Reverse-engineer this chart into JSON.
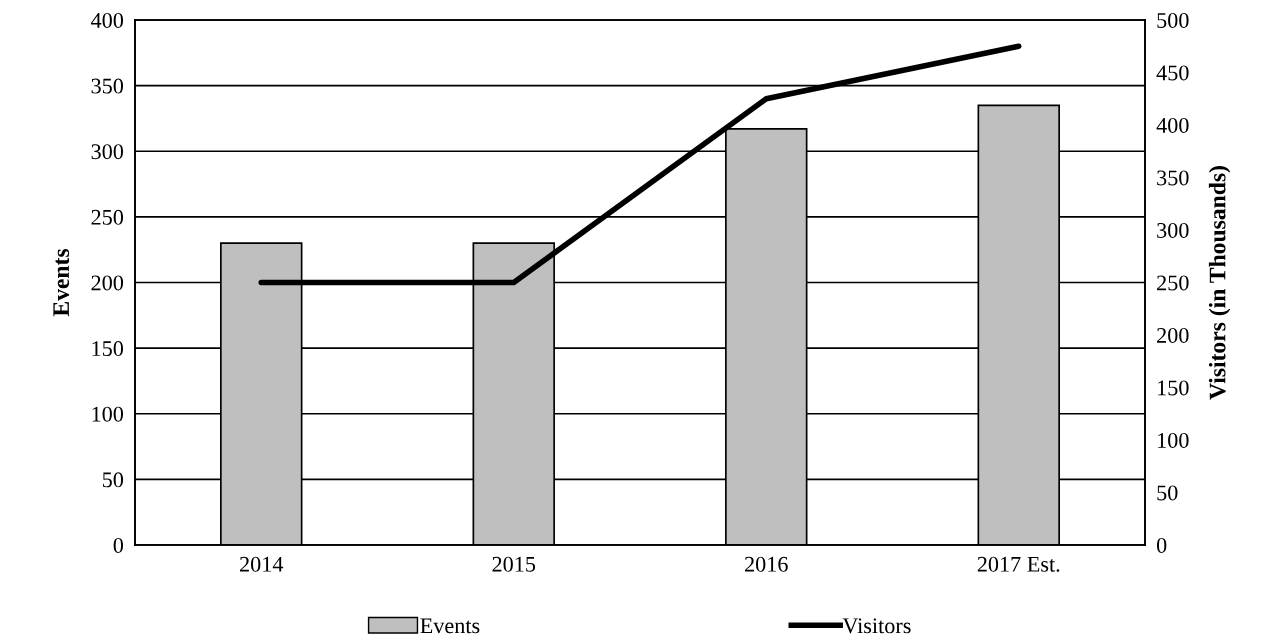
{
  "chart_data": {
    "type": "bar",
    "categories": [
      "2014",
      "2015",
      "2016",
      "2017 Est."
    ],
    "ylabel": "Events",
    "y2label": "Visitors (in Thousands)",
    "series": [
      {
        "name": "Events",
        "color": "#bfbfbf",
        "values": [
          230,
          230,
          317,
          335
        ]
      },
      {
        "name": "Visitors",
        "type": "line",
        "axis": "y2",
        "color": "#000000",
        "values": [
          250,
          250,
          425,
          475
        ]
      }
    ],
    "ylim": [
      0,
      400
    ],
    "yticks": [
      0,
      50,
      100,
      150,
      200,
      250,
      300,
      350,
      400
    ],
    "y2lim": [
      0,
      500
    ],
    "y2ticks": [
      0,
      50,
      100,
      150,
      200,
      250,
      300,
      350,
      400,
      450,
      500
    ],
    "grid": "y",
    "legend": "bottom"
  }
}
